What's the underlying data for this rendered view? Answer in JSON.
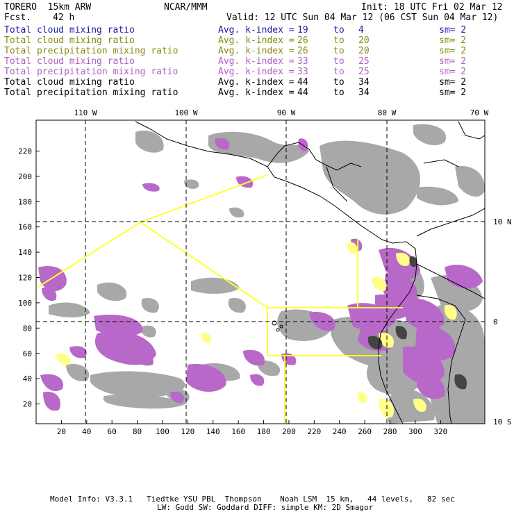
{
  "header": {
    "model": "TORERO  15km ARW",
    "center": "NCAR/MMM",
    "init": "Init: 18 UTC Fri 02 Mar 12",
    "fcst_label": "Fcst.",
    "fcst_value": "42 h",
    "valid": "Valid: 12 UTC Sun 04 Mar 12 (06 CST Sun 04 Mar 12)"
  },
  "legend": [
    {
      "field": "Total cloud mixing ratio",
      "avg": "Avg. k-index =",
      "from": "19",
      "to_word": "to",
      "to": "4",
      "sm": "sm= 2",
      "color": "#1a1aa8"
    },
    {
      "field": "Total cloud mixing ratio",
      "avg": "Avg. k-index =",
      "from": "26",
      "to_word": "to",
      "to": "20",
      "sm": "sm= 2",
      "color": "#8a8a10"
    },
    {
      "field": "Total precipitation mixing ratio",
      "avg": "Avg. k-index =",
      "from": "26",
      "to_word": "to",
      "to": "20",
      "sm": "sm= 2",
      "color": "#8a8a10"
    },
    {
      "field": "Total cloud mixing ratio",
      "avg": "Avg. k-index =",
      "from": "33",
      "to_word": "to",
      "to": "25",
      "sm": "sm= 2",
      "color": "#b060c0"
    },
    {
      "field": "Total precipitation mixing ratio",
      "avg": "Avg. k-index =",
      "from": "33",
      "to_word": "to",
      "to": "25",
      "sm": "sm= 2",
      "color": "#b060c0"
    },
    {
      "field": "Total cloud mixing ratio",
      "avg": "Avg. k-index =",
      "from": "44",
      "to_word": "to",
      "to": "34",
      "sm": "sm= 2",
      "color": "#000000"
    },
    {
      "field": "Total precipitation mixing ratio",
      "avg": "Avg. k-index =",
      "from": "44",
      "to_word": "to",
      "to": "34",
      "sm": "sm= 2",
      "color": "#000000"
    }
  ],
  "map": {
    "top_lon_labels": [
      "110 W",
      "100 W",
      "90 W",
      "80 W",
      "70 W"
    ],
    "right_lat_labels": [
      "10 N",
      "0",
      "10 S"
    ],
    "y_ticks": [
      "20",
      "40",
      "60",
      "80",
      "100",
      "120",
      "140",
      "160",
      "180",
      "200",
      "220"
    ],
    "x_ticks": [
      "20",
      "40",
      "60",
      "80",
      "100",
      "120",
      "140",
      "160",
      "180",
      "200",
      "220",
      "240",
      "260",
      "280",
      "300",
      "320"
    ],
    "colors": {
      "gray": "#a0a0a0",
      "dark": "#555555",
      "purple": "#b868c8",
      "yellow": "#ffff88",
      "outline": "#ffff30",
      "coast": "#000000"
    }
  },
  "footer": {
    "line1": "Model Info: V3.3.1   Tiedtke YSU PBL  Thompson    Noah LSM  15 km,   44 levels,   82 sec",
    "line2": "LW: Godd SW: Goddard DIFF: simple KM: 2D Smagor"
  }
}
